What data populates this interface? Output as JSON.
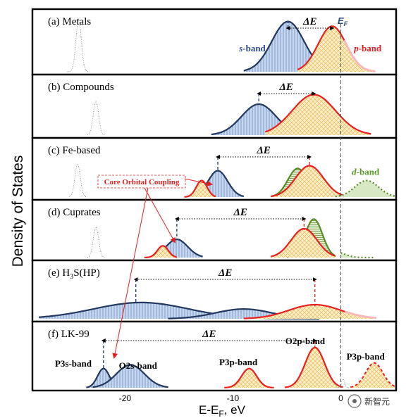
{
  "chart_data": {
    "type": "area",
    "ylabel": "Density of States",
    "xlabel_main": "E-E",
    "xlabel_sub": "F",
    "xlabel_unit": ", eV",
    "xlim": [
      -28,
      5
    ],
    "ticks": [
      {
        "value": -20,
        "label": "-20"
      },
      {
        "value": -10,
        "label": "-10"
      },
      {
        "value": 0,
        "label": "0"
      }
    ],
    "fermi_label": "E",
    "fermi_sub": "F",
    "delta_label": "ΔE",
    "core_coupling_label": "Core Orbital Coupling",
    "panels": [
      {
        "title_html": "(a) Metals",
        "title_parts": [
          {
            "t": "(a) Metals"
          }
        ],
        "delta_from": -4.9,
        "delta_to": -0.8,
        "bands": [
          {
            "name": "s-band",
            "kind": "s",
            "center": -4.9,
            "width": 1.5,
            "height": 0.86,
            "xmin": -9,
            "xmax": -1.5,
            "tail": false
          },
          {
            "name": "p-band",
            "kind": "p",
            "center": -0.8,
            "width": 1.3,
            "height": 0.78,
            "xmin": -4,
            "xmax": 3.2,
            "tail": true
          },
          {
            "name": "core",
            "kind": "core",
            "center": -24.3,
            "width": 0.25,
            "height": 0.9,
            "xmin": -25.4,
            "xmax": -23.2,
            "tail": false
          }
        ],
        "labels": [
          {
            "text": "s",
            "suffix": "-band",
            "x": -8.2,
            "frac": 0.6,
            "color": "#2f4a9a"
          },
          {
            "text": "p",
            "suffix": "-band",
            "x": 2.5,
            "frac": 0.6,
            "color": "#e02020"
          }
        ]
      },
      {
        "title_parts": [
          {
            "t": "(b) Compounds"
          }
        ],
        "delta_from": -7.6,
        "delta_to": -2.5,
        "bands": [
          {
            "name": "s-band",
            "kind": "s",
            "center": -7.6,
            "width": 1.6,
            "height": 0.55,
            "xmin": -12,
            "xmax": -4.5,
            "tail": false
          },
          {
            "name": "p-band",
            "kind": "p",
            "center": -2.5,
            "width": 2.0,
            "height": 0.72,
            "xmin": -7,
            "xmax": 2.8,
            "tail": false
          },
          {
            "name": "core",
            "kind": "core",
            "center": -22.7,
            "width": 0.25,
            "height": 0.6,
            "xmin": -23.5,
            "xmax": -21.9,
            "tail": false
          }
        ],
        "labels": []
      },
      {
        "title_parts": [
          {
            "t": "(c) Fe-based"
          }
        ],
        "delta_from": -11.4,
        "delta_to": -2.9,
        "bands": [
          {
            "name": "core-s",
            "kind": "s",
            "center": -11.4,
            "width": 0.9,
            "height": 0.48,
            "xmin": -13.5,
            "xmax": -9.0,
            "tail": false
          },
          {
            "name": "core-p",
            "kind": "p",
            "center": -12.9,
            "width": 0.5,
            "height": 0.3,
            "xmin": -14.5,
            "xmax": -11.6,
            "tail": false
          },
          {
            "name": "green",
            "kind": "g",
            "center": -4.0,
            "width": 0.9,
            "height": 0.52,
            "xmin": -6.5,
            "xmax": -1.5,
            "tail": false
          },
          {
            "name": "p-band",
            "kind": "p",
            "center": -2.9,
            "width": 1.3,
            "height": 0.57,
            "xmin": -6.5,
            "xmax": 0.4,
            "tail": false
          },
          {
            "name": "d-band",
            "kind": "d",
            "center": 2.4,
            "width": 1.1,
            "height": 0.3,
            "xmin": -0.5,
            "xmax": 5,
            "tail": false
          },
          {
            "name": "core",
            "kind": "core",
            "center": -24.4,
            "width": 0.25,
            "height": 0.6,
            "xmin": -25.2,
            "xmax": -23.6,
            "tail": false
          }
        ],
        "labels": [
          {
            "text": "d",
            "suffix": "-band",
            "x": 2.3,
            "frac": 0.55,
            "color": "#5a9a2a"
          }
        ]
      },
      {
        "title_parts": [
          {
            "t": "(d) Cuprates"
          }
        ],
        "delta_from": -15.2,
        "delta_to": -3.4,
        "bands": [
          {
            "name": "core-s",
            "kind": "s",
            "center": -15.2,
            "width": 1.0,
            "height": 0.34,
            "xmin": -17.5,
            "xmax": -12.8,
            "tail": false
          },
          {
            "name": "core-p",
            "kind": "p",
            "center": -16.5,
            "width": 0.5,
            "height": 0.22,
            "xmin": -18.2,
            "xmax": -15.2,
            "tail": false
          },
          {
            "name": "green",
            "kind": "g",
            "center": -2.5,
            "width": 0.8,
            "height": 0.72,
            "xmin": -5,
            "xmax": -0.5,
            "tail": false
          },
          {
            "name": "p-band",
            "kind": "p",
            "center": -3.4,
            "width": 1.2,
            "height": 0.54,
            "xmin": -6.5,
            "xmax": -0.5,
            "tail": false
          },
          {
            "name": "d-band",
            "kind": "d",
            "center": -0.4,
            "width": 0.8,
            "height": 0.1,
            "xmin": 0,
            "xmax": 3,
            "tail": false
          },
          {
            "name": "core",
            "kind": "core",
            "center": -22.7,
            "width": 0.25,
            "height": 0.56,
            "xmin": -23.5,
            "xmax": -21.9,
            "tail": false
          }
        ],
        "labels": []
      },
      {
        "title_parts": [
          {
            "t": "(e) H"
          },
          {
            "t": "3",
            "sub": true
          },
          {
            "t": "S(HP)"
          }
        ],
        "delta_from": -19.0,
        "delta_to": -2.4,
        "bands": [
          {
            "name": "s-wide",
            "kind": "s",
            "center": -18.5,
            "width": 4.4,
            "height": 0.3,
            "xmin": -28,
            "xmax": -2,
            "tail": false
          },
          {
            "name": "s-wide2",
            "kind": "s",
            "center": -9.0,
            "width": 2.6,
            "height": 0.18,
            "xmin": -16,
            "xmax": -2.5,
            "tail": false
          },
          {
            "name": "p-band",
            "kind": "p",
            "center": -2.4,
            "width": 2.4,
            "height": 0.26,
            "xmin": -9,
            "xmax": 3.3,
            "tail": true
          }
        ],
        "labels": []
      },
      {
        "title_parts": [
          {
            "t": "(f) LK-99"
          }
        ],
        "delta_from": -22.0,
        "delta_to": -2.4,
        "bands": [
          {
            "name": "P3s-band",
            "kind": "s",
            "center": -22.0,
            "width": 0.55,
            "height": 0.31,
            "xmin": -23.6,
            "xmax": -20.6,
            "tail": false
          },
          {
            "name": "O2s-band",
            "kind": "s",
            "center": -19.5,
            "width": 1.3,
            "height": 0.37,
            "xmin": -23.0,
            "xmax": -16.0,
            "tail": false
          },
          {
            "name": "P3p-band",
            "kind": "p",
            "center": -8.5,
            "width": 0.7,
            "height": 0.31,
            "xmin": -10.8,
            "xmax": -6.2,
            "tail": false
          },
          {
            "name": "O2p-band",
            "kind": "p",
            "center": -2.4,
            "width": 0.9,
            "height": 0.65,
            "xmin": -5.2,
            "xmax": 0.2,
            "tail": false
          },
          {
            "name": "P3p-band2",
            "kind": "pd",
            "center": 3.1,
            "width": 0.8,
            "height": 0.4,
            "xmin": 0.9,
            "xmax": 5,
            "tail": false
          },
          {
            "name": "core",
            "kind": "core",
            "center": 0.2,
            "width": 0.15,
            "height": 0.14,
            "xmin": -0.4,
            "xmax": 0.8,
            "tail": false
          }
        ],
        "labels": []
      }
    ],
    "f_labels": {
      "p3s": "P3s-band",
      "o2s": "O2s-band",
      "p3p": "P3p-band",
      "o2p": "O2p-band",
      "p3p2": "P3p-band"
    }
  },
  "colors": {
    "s_fill": "#b8cbe8",
    "s_line": "#22385e",
    "s_black": "#000000",
    "p_fill": "#fbe4b0",
    "p_line": "#e82020",
    "g_line": "#5a8a2a",
    "g_fill": "#cfe3b8",
    "red": "#e02020"
  },
  "watermark": "新智元"
}
